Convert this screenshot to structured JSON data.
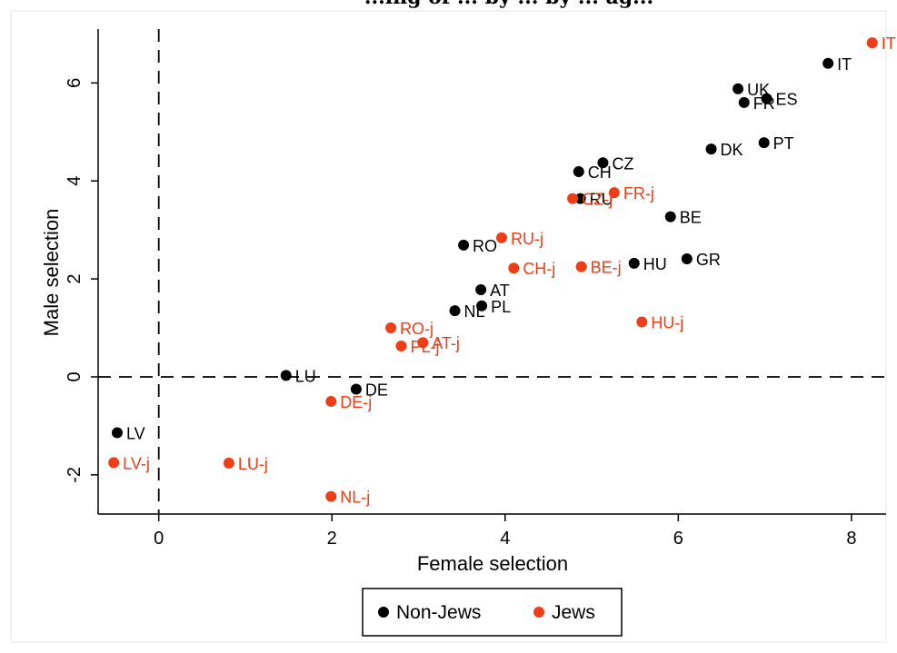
{
  "chart_data": {
    "type": "scatter",
    "title": "...ing of ... by ... by ... ag...",
    "xlabel": "Female selection",
    "ylabel": "Male selection",
    "xlim": [
      -0.7,
      8.4
    ],
    "ylim": [
      -2.8,
      7.1
    ],
    "xticks": [
      0,
      2,
      4,
      6,
      8
    ],
    "yticks": [
      -2,
      0,
      2,
      4,
      6
    ],
    "grid": false,
    "reference_lines": {
      "x": 0,
      "y": 0,
      "style": "dashed"
    },
    "legend_position": "bottom",
    "series": [
      {
        "name": "Non-Jews",
        "color": "#000000",
        "points": [
          {
            "label": "IT",
            "x": 7.73,
            "y": 6.4
          },
          {
            "label": "UK",
            "x": 6.69,
            "y": 5.88
          },
          {
            "label": "ES",
            "x": 7.02,
            "y": 5.68
          },
          {
            "label": "FR",
            "x": 6.76,
            "y": 5.6
          },
          {
            "label": "DK",
            "x": 6.38,
            "y": 4.65
          },
          {
            "label": "PT",
            "x": 6.99,
            "y": 4.78
          },
          {
            "label": "CZ",
            "x": 5.13,
            "y": 4.37
          },
          {
            "label": "CH",
            "x": 4.85,
            "y": 4.19
          },
          {
            "label": "RU",
            "x": 4.87,
            "y": 3.64
          },
          {
            "label": "BE",
            "x": 5.91,
            "y": 3.27
          },
          {
            "label": "RO",
            "x": 3.52,
            "y": 2.69
          },
          {
            "label": "GR",
            "x": 6.1,
            "y": 2.41
          },
          {
            "label": "HU",
            "x": 5.49,
            "y": 2.32
          },
          {
            "label": "AT",
            "x": 3.72,
            "y": 1.78
          },
          {
            "label": "PL",
            "x": 3.73,
            "y": 1.45
          },
          {
            "label": "NL",
            "x": 3.42,
            "y": 1.35
          },
          {
            "label": "LU",
            "x": 1.47,
            "y": 0.03
          },
          {
            "label": "DE",
            "x": 2.28,
            "y": -0.25
          },
          {
            "label": "LV",
            "x": -0.48,
            "y": -1.14
          }
        ]
      },
      {
        "name": "Jews",
        "color": "#ee3d17",
        "points": [
          {
            "label": "IT",
            "x": 8.24,
            "y": 6.82
          },
          {
            "label": "CZ-j",
            "x": 4.78,
            "y": 3.64
          },
          {
            "label": "FR-j",
            "x": 5.26,
            "y": 3.76
          },
          {
            "label": "RU-j",
            "x": 3.96,
            "y": 2.84
          },
          {
            "label": "CH-j",
            "x": 4.1,
            "y": 2.22
          },
          {
            "label": "BE-j",
            "x": 4.88,
            "y": 2.25
          },
          {
            "label": "HU-j",
            "x": 5.58,
            "y": 1.12
          },
          {
            "label": "RO-j",
            "x": 2.68,
            "y": 1.0
          },
          {
            "label": "AT-j",
            "x": 3.05,
            "y": 0.7
          },
          {
            "label": "PL-j",
            "x": 2.8,
            "y": 0.63
          },
          {
            "label": "DE-j",
            "x": 1.99,
            "y": -0.5
          },
          {
            "label": "LV-j",
            "x": -0.52,
            "y": -1.75
          },
          {
            "label": "LU-j",
            "x": 0.81,
            "y": -1.76
          },
          {
            "label": "NL-j",
            "x": 1.99,
            "y": -2.44
          }
        ]
      }
    ]
  },
  "legend": {
    "items": [
      {
        "label": "Non-Jews",
        "color": "#000000"
      },
      {
        "label": "Jews",
        "color": "#ee3d17"
      }
    ]
  }
}
